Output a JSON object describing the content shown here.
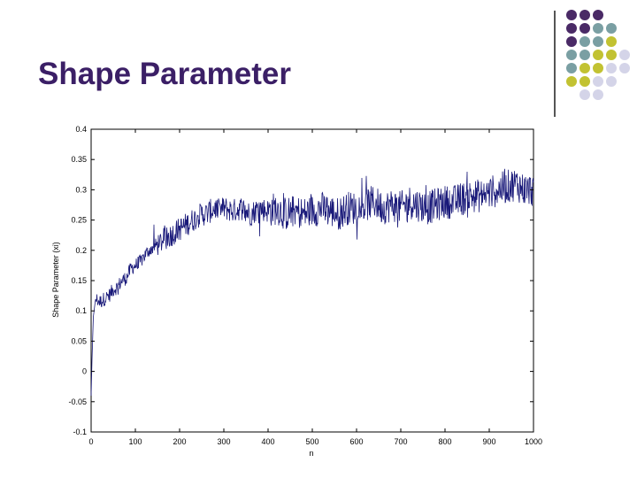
{
  "slide": {
    "title": "Shape Parameter"
  },
  "decoration": {
    "dot_colors": {
      "purple": "#4a2a66",
      "teal": "#7a9fa3",
      "olive": "#c2c232",
      "lavender": "#d4d4e8"
    },
    "dot_grid": [
      [
        "purple",
        "purple",
        "purple",
        "",
        ""
      ],
      [
        "purple",
        "purple",
        "teal",
        "teal",
        ""
      ],
      [
        "purple",
        "teal",
        "teal",
        "olive",
        ""
      ],
      [
        "teal",
        "teal",
        "olive",
        "olive",
        "lavender"
      ],
      [
        "teal",
        "olive",
        "olive",
        "lavender",
        "lavender"
      ],
      [
        "olive",
        "olive",
        "lavender",
        "lavender",
        ""
      ],
      [
        "",
        "lavender",
        "lavender",
        "",
        ""
      ]
    ]
  },
  "chart_data": {
    "type": "line",
    "title": "",
    "xlabel": "n",
    "ylabel": "Shape Parameter (xi)",
    "xlim": [
      0,
      1000
    ],
    "ylim": [
      -0.1,
      0.4
    ],
    "x_ticks": [
      "0",
      "100",
      "200",
      "300",
      "400",
      "500",
      "600",
      "700",
      "800",
      "900",
      "1000"
    ],
    "y_ticks": [
      "0.4",
      "0.35",
      "0.3",
      "0.25",
      "0.2",
      "0.15",
      "0.1",
      "0.05",
      "0",
      "-0.05",
      "-0.1"
    ],
    "line_color": "#1a1a7a",
    "grid": false,
    "series": [
      {
        "x": [
          0,
          2,
          5,
          10,
          20,
          30,
          40,
          50,
          60,
          70,
          80,
          90,
          100,
          110,
          120,
          130,
          140,
          150,
          160,
          170,
          180,
          190,
          200,
          210,
          220,
          230,
          240,
          250,
          260,
          270,
          280,
          290,
          300,
          320,
          340,
          360,
          380,
          400,
          420,
          440,
          460,
          480,
          500,
          520,
          540,
          560,
          580,
          600,
          620,
          640,
          660,
          680,
          700,
          720,
          740,
          760,
          780,
          800,
          820,
          840,
          860,
          880,
          900,
          920,
          940,
          960,
          980,
          1000
        ],
        "values": [
          -0.04,
          0.02,
          0.09,
          0.12,
          0.115,
          0.12,
          0.125,
          0.135,
          0.14,
          0.15,
          0.155,
          0.17,
          0.175,
          0.18,
          0.19,
          0.2,
          0.205,
          0.21,
          0.215,
          0.22,
          0.225,
          0.23,
          0.235,
          0.24,
          0.245,
          0.25,
          0.255,
          0.26,
          0.26,
          0.265,
          0.27,
          0.265,
          0.27,
          0.265,
          0.27,
          0.26,
          0.27,
          0.265,
          0.27,
          0.26,
          0.265,
          0.26,
          0.265,
          0.27,
          0.265,
          0.26,
          0.27,
          0.27,
          0.275,
          0.28,
          0.27,
          0.275,
          0.27,
          0.28,
          0.275,
          0.27,
          0.275,
          0.28,
          0.28,
          0.285,
          0.29,
          0.29,
          0.295,
          0.3,
          0.305,
          0.31,
          0.3,
          0.3
        ]
      }
    ]
  }
}
